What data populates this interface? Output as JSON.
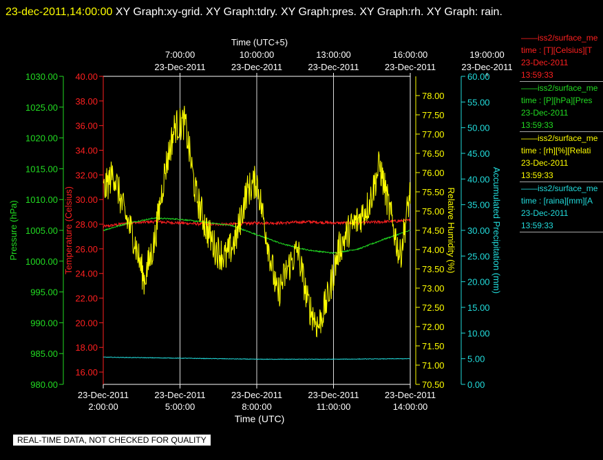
{
  "header": {
    "timestamp": "23-dec-2011,14:00:00",
    "graphs": " XY Graph:xy-grid.  XY Graph:tdry.  XY Graph:pres.  XY Graph:rh.  XY Graph: rain."
  },
  "legend": [
    {
      "name": "iss2/surface_me",
      "line1": "time : [T][Celsius][T",
      "date": "23-Dec-2011",
      "time": "13:59:33",
      "color": "#ff2020"
    },
    {
      "name": "iss2/surface_me",
      "line1": "time : [P][hPa][Pres",
      "date": "23-Dec-2011",
      "time": "13:59:33",
      "color": "#22dd22"
    },
    {
      "name": "iss2/surface_me",
      "line1": "time : [rh][%][Relati",
      "date": "23-Dec-2011",
      "time": "13:59:33",
      "color": "#ffff00"
    },
    {
      "name": "iss2/surface_me",
      "line1": "time : [raina][mm][A",
      "date": "23-Dec-2011",
      "time": "13:59:33",
      "color": "#22dddd"
    }
  ],
  "footer": {
    "quality_note": "REAL-TIME DATA, NOT CHECKED FOR QUALITY"
  },
  "chart_data": {
    "type": "line",
    "grid": true,
    "top_axis": {
      "label": "Time (UTC+5)",
      "ticks": [
        {
          "t": 5,
          "time": "7:00:00",
          "date": "23-Dec-2011"
        },
        {
          "t": 8,
          "time": "10:00:00",
          "date": "23-Dec-2011"
        },
        {
          "t": 11,
          "time": "13:00:00",
          "date": "23-Dec-2011"
        },
        {
          "t": 14,
          "time": "16:00:00",
          "date": "23-Dec-2011"
        },
        {
          "t": 17,
          "time": "19:00:00",
          "date": "23-Dec-2011"
        }
      ]
    },
    "bottom_axis": {
      "label": "Time (UTC)",
      "range": [
        2,
        14
      ],
      "ticks": [
        {
          "t": 2,
          "date": "23-Dec-2011",
          "time": "2:00:00"
        },
        {
          "t": 5,
          "date": "23-Dec-2011",
          "time": "5:00:00"
        },
        {
          "t": 8,
          "date": "23-Dec-2011",
          "time": "8:00:00"
        },
        {
          "t": 11,
          "date": "23-Dec-2011",
          "time": "11:00:00"
        },
        {
          "t": 14,
          "date": "23-Dec-2011",
          "time": "14:00:00"
        }
      ]
    },
    "y_axes": {
      "pressure": {
        "label": "Pressure (hPa)",
        "range": [
          980,
          1030
        ],
        "color": "#22dd22",
        "ticks": [
          "980.00",
          "985.00",
          "990.00",
          "995.00",
          "1000.00",
          "1005.00",
          "1010.00",
          "1015.00",
          "1020.00",
          "1025.00",
          "1030.00"
        ]
      },
      "temperature": {
        "label": "Temperature (Celsius)",
        "range": [
          15,
          40
        ],
        "color": "#ff2020",
        "ticks": [
          "16.00",
          "18.00",
          "20.00",
          "22.00",
          "24.00",
          "26.00",
          "28.00",
          "30.00",
          "32.00",
          "34.00",
          "36.00",
          "38.00",
          "40.00"
        ]
      },
      "rh": {
        "label": "Relative Humidity (%)",
        "range": [
          70.5,
          78.5
        ],
        "color": "#ffff00",
        "ticks": [
          "70.50",
          "71.00",
          "71.50",
          "72.00",
          "72.50",
          "73.00",
          "73.50",
          "74.00",
          "74.50",
          "75.00",
          "75.50",
          "76.00",
          "76.50",
          "77.00",
          "77.50",
          "78.00"
        ]
      },
      "precip": {
        "label": "Accumulated Precipitation (mm)",
        "range": [
          0,
          60
        ],
        "color": "#22dddd",
        "ticks": [
          "0.00",
          "5.00",
          "10.00",
          "15.00",
          "20.00",
          "25.00",
          "30.00",
          "35.00",
          "40.00",
          "45.00",
          "50.00",
          "55.00",
          "60.00"
        ]
      }
    },
    "series": [
      {
        "name": "Temperature",
        "axis": "temperature",
        "color": "#ff2020",
        "noise": 0.12,
        "points": [
          [
            2,
            27.8
          ],
          [
            3,
            28.1
          ],
          [
            4,
            28.2
          ],
          [
            5,
            28.1
          ],
          [
            6,
            28.0
          ],
          [
            7,
            28.0
          ],
          [
            8,
            28.1
          ],
          [
            9,
            28.1
          ],
          [
            10,
            28.2
          ],
          [
            11,
            28.1
          ],
          [
            12,
            28.1
          ],
          [
            13,
            28.2
          ],
          [
            14,
            28.3
          ]
        ]
      },
      {
        "name": "Pressure",
        "axis": "pressure",
        "color": "#22dd22",
        "noise": 0.1,
        "points": [
          [
            2,
            1005.0
          ],
          [
            3,
            1006.2
          ],
          [
            4,
            1007.0
          ],
          [
            5,
            1006.8
          ],
          [
            6,
            1006.3
          ],
          [
            7,
            1005.8
          ],
          [
            8,
            1004.3
          ],
          [
            9,
            1002.8
          ],
          [
            10,
            1001.8
          ],
          [
            11,
            1001.3
          ],
          [
            12,
            1002.0
          ],
          [
            13,
            1003.6
          ],
          [
            14,
            1005.0
          ]
        ]
      },
      {
        "name": "Relative Humidity",
        "axis": "rh",
        "color": "#ffff00",
        "noise": 0.45,
        "points": [
          [
            2,
            75.5
          ],
          [
            2.4,
            76.0
          ],
          [
            2.8,
            75.0
          ],
          [
            3.2,
            74.3
          ],
          [
            3.6,
            73.2
          ],
          [
            4.0,
            74.2
          ],
          [
            4.4,
            76.0
          ],
          [
            4.8,
            77.2
          ],
          [
            5.2,
            77.3
          ],
          [
            5.6,
            75.5
          ],
          [
            6.0,
            74.6
          ],
          [
            6.4,
            74.0
          ],
          [
            6.8,
            73.8
          ],
          [
            7.2,
            74.3
          ],
          [
            7.6,
            75.5
          ],
          [
            8.0,
            75.8
          ],
          [
            8.4,
            74.3
          ],
          [
            8.8,
            72.8
          ],
          [
            9.2,
            73.5
          ],
          [
            9.6,
            74.0
          ],
          [
            10.0,
            72.6
          ],
          [
            10.4,
            72.0
          ],
          [
            10.8,
            72.8
          ],
          [
            11.2,
            74.0
          ],
          [
            11.6,
            74.5
          ],
          [
            12.0,
            74.8
          ],
          [
            12.4,
            75.2
          ],
          [
            12.8,
            76.2
          ],
          [
            13.2,
            75.0
          ],
          [
            13.6,
            73.8
          ],
          [
            14.0,
            75.5
          ]
        ]
      },
      {
        "name": "Accumulated Precipitation",
        "axis": "precip",
        "color": "#22dddd",
        "noise": 0.05,
        "points": [
          [
            2,
            5.3
          ],
          [
            5,
            5.1
          ],
          [
            8,
            4.9
          ],
          [
            11,
            4.9
          ],
          [
            14,
            5.0
          ]
        ]
      }
    ]
  }
}
